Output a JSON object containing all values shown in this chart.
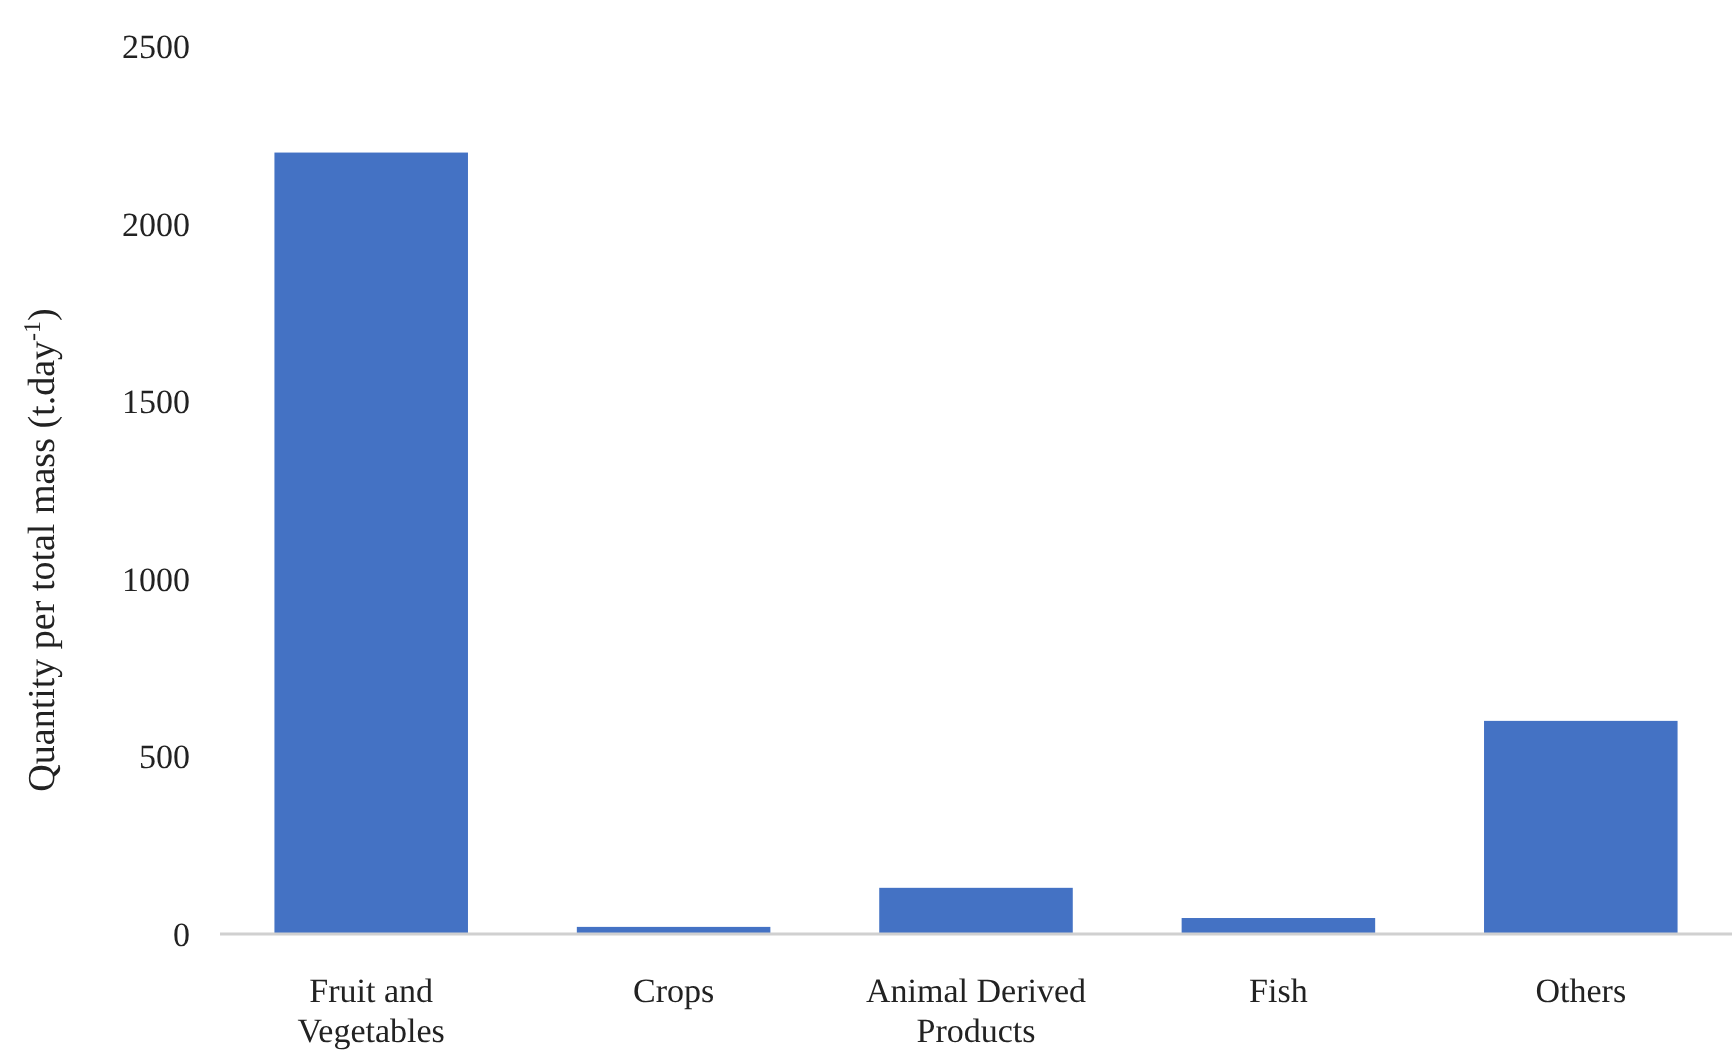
{
  "chart_data": {
    "type": "bar",
    "ylabel": "Quantity per total mass (t.day$^{-1}$)",
    "categories": [
      "Fruit and Vegetables",
      "Crops",
      "Animal Derived Products",
      "Fish",
      "Others"
    ],
    "values": [
      2200,
      20,
      130,
      45,
      600
    ],
    "color": "#4472c4",
    "ylim": [
      0,
      2500
    ],
    "yticks": [
      0,
      500,
      1000,
      1500,
      2000,
      2500
    ],
    "grid": false
  }
}
